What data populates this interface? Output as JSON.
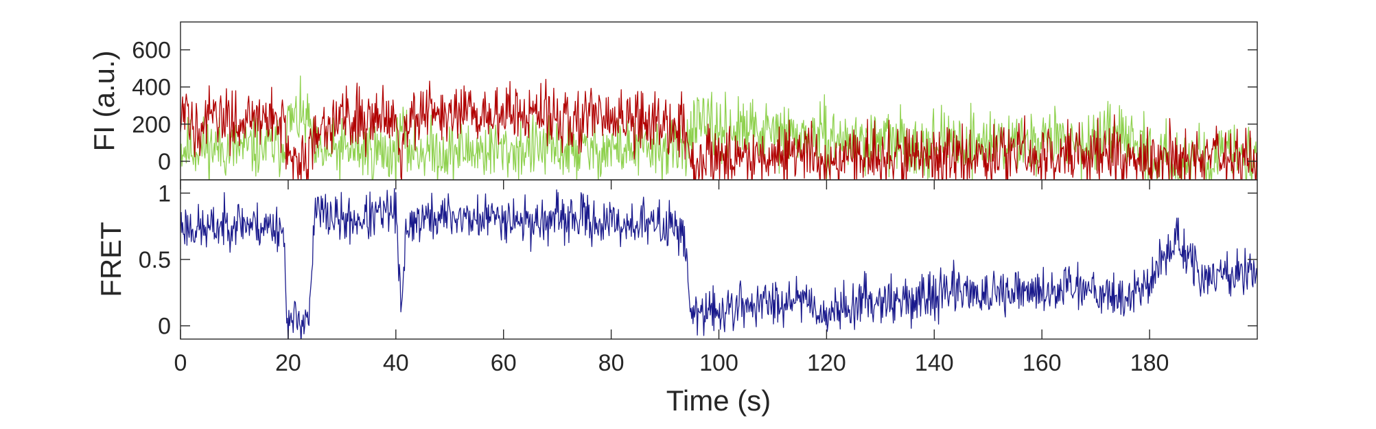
{
  "chart_data": [
    {
      "type": "line",
      "ylabel": "FI (a.u.)",
      "ylim": [
        -100,
        750
      ],
      "xlim": [
        0,
        200
      ],
      "yticks": [
        0,
        200,
        400,
        600
      ],
      "xticks": [],
      "series": [
        {
          "color": "#8fd14f",
          "x": [
            0,
            5,
            10,
            15,
            19,
            20,
            22,
            24,
            25,
            30,
            35,
            40,
            41,
            42,
            45,
            50,
            55,
            60,
            65,
            70,
            75,
            80,
            85,
            90,
            93,
            94,
            95,
            97,
            100,
            105,
            110,
            115,
            120,
            125,
            130,
            135,
            140,
            145,
            150,
            155,
            160,
            165,
            170,
            175,
            178,
            180,
            185,
            190,
            195,
            200
          ],
          "values": [
            70,
            80,
            60,
            75,
            80,
            210,
            230,
            200,
            30,
            60,
            55,
            40,
            200,
            70,
            60,
            50,
            60,
            55,
            70,
            60,
            55,
            70,
            60,
            65,
            60,
            100,
            180,
            190,
            170,
            160,
            150,
            130,
            120,
            100,
            110,
            90,
            100,
            100,
            110,
            95,
            120,
            110,
            100,
            120,
            110,
            20,
            10,
            20,
            30,
            30
          ]
        },
        {
          "color": "#b00000",
          "x": [
            0,
            5,
            10,
            15,
            19,
            20,
            22,
            24,
            25,
            30,
            35,
            40,
            41,
            42,
            45,
            50,
            55,
            60,
            65,
            70,
            75,
            80,
            85,
            90,
            93,
            94,
            95,
            97,
            100,
            105,
            110,
            115,
            120,
            125,
            130,
            135,
            140,
            145,
            150,
            155,
            160,
            165,
            170,
            175,
            178,
            180,
            185,
            190,
            195,
            200
          ],
          "values": [
            220,
            210,
            230,
            220,
            240,
            0,
            -10,
            10,
            200,
            230,
            240,
            260,
            10,
            250,
            240,
            250,
            240,
            260,
            250,
            240,
            230,
            220,
            210,
            200,
            190,
            100,
            10,
            20,
            20,
            30,
            30,
            40,
            10,
            20,
            30,
            20,
            30,
            40,
            30,
            30,
            40,
            50,
            40,
            30,
            40,
            10,
            20,
            10,
            20,
            20
          ]
        }
      ]
    },
    {
      "type": "line",
      "ylabel": "FRET",
      "xlabel": "Time (s)",
      "ylim": [
        -0.1,
        1.1
      ],
      "xlim": [
        0,
        200
      ],
      "yticks": [
        0,
        0.5,
        1
      ],
      "xticks": [
        0,
        20,
        40,
        60,
        80,
        100,
        120,
        140,
        160,
        180
      ],
      "series": [
        {
          "color": "#1a1a8c",
          "x": [
            0,
            5,
            10,
            15,
            19,
            20,
            22,
            24,
            25,
            30,
            35,
            40,
            41,
            42,
            45,
            50,
            55,
            60,
            65,
            70,
            75,
            80,
            85,
            90,
            93,
            94,
            95,
            97,
            100,
            105,
            110,
            115,
            120,
            125,
            130,
            135,
            140,
            145,
            150,
            155,
            160,
            165,
            170,
            175,
            178,
            180,
            185,
            190,
            195,
            200
          ],
          "values": [
            0.76,
            0.72,
            0.79,
            0.75,
            0.75,
            0.0,
            0.05,
            0.08,
            0.87,
            0.79,
            0.81,
            0.87,
            0.05,
            0.78,
            0.8,
            0.83,
            0.8,
            0.83,
            0.78,
            0.8,
            0.81,
            0.76,
            0.78,
            0.75,
            0.76,
            0.5,
            0.05,
            0.1,
            0.11,
            0.16,
            0.17,
            0.24,
            0.08,
            0.17,
            0.21,
            0.18,
            0.23,
            0.29,
            0.21,
            0.24,
            0.25,
            0.31,
            0.29,
            0.2,
            0.27,
            0.33,
            0.67,
            0.33,
            0.4,
            0.4
          ]
        }
      ]
    }
  ]
}
